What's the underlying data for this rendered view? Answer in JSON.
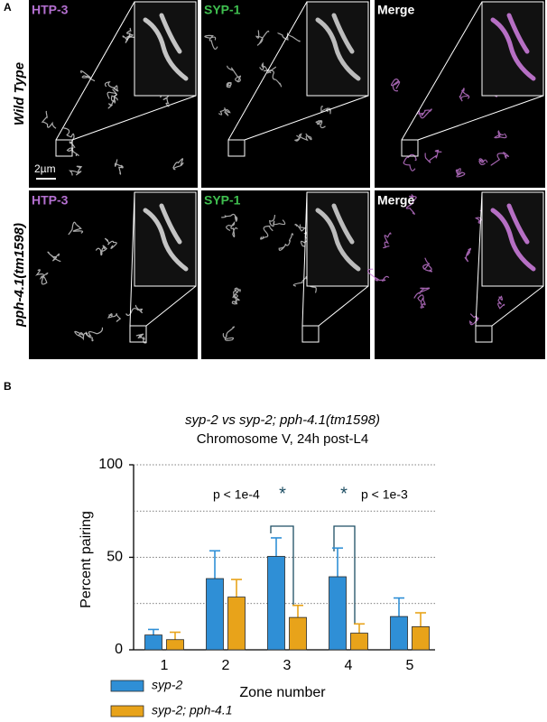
{
  "panel_a": {
    "label": "A",
    "scale_bar": "2µm",
    "rows": [
      {
        "name": "Wild Type",
        "channels": [
          "HTP-3",
          "SYP-1",
          "Merge"
        ]
      },
      {
        "name": "pph-4.1(tm1598)",
        "channels": [
          "HTP-3",
          "SYP-1",
          "Merge"
        ]
      }
    ]
  },
  "chart_data": {
    "panel_label": "B",
    "type": "bar",
    "title": "syp-2 vs syp-2; pph-4.1(tm1598)",
    "subtitle": "Chromosome V, 24h post-L4",
    "xlabel": "Zone number",
    "ylabel": "Percent pairing",
    "categories": [
      "1",
      "2",
      "3",
      "4",
      "5"
    ],
    "series": [
      {
        "name": "syp-2",
        "color": "#2f8fd6",
        "values": [
          8,
          38.5,
          50.5,
          39.5,
          18
        ],
        "errors": [
          3,
          15,
          10,
          15.5,
          10
        ]
      },
      {
        "name": "syp-2; pph-4.1",
        "color": "#e8a31a",
        "values": [
          5.5,
          28.5,
          17.5,
          9,
          12.5
        ],
        "errors": [
          4,
          9.5,
          6.5,
          5,
          7.5
        ]
      }
    ],
    "ylim": [
      0,
      100
    ],
    "yticks": [
      0,
      50,
      100
    ],
    "gridlines": [
      25,
      50,
      75,
      100
    ],
    "annotations": [
      "p < 1e-4",
      "*",
      "*",
      "p < 1e-3"
    ]
  }
}
